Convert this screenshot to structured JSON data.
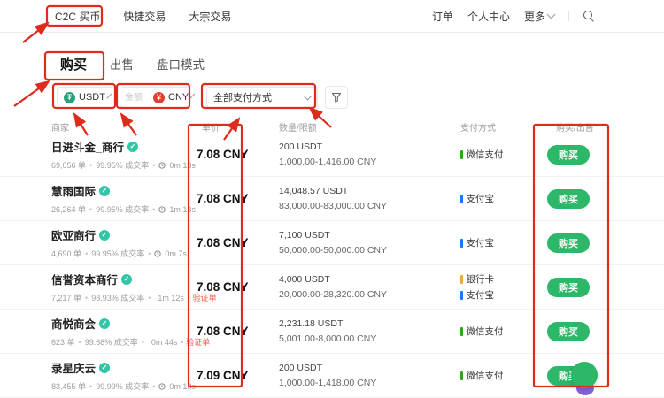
{
  "colors": {
    "accent_green": "#2db768",
    "badge_teal": "#33c6a6",
    "annotation_red": "#dd2b1c",
    "usdt_icon": "#26a17b",
    "cny_icon": "#e0402f",
    "tag_red": "#e8604c"
  },
  "icons": {
    "verified_badge": "✓",
    "usdt_symbol": "₮",
    "cny_symbol": "¥"
  },
  "nav": {
    "items": [
      "C2C 买币",
      "快捷交易",
      "大宗交易"
    ],
    "right": [
      "订单",
      "个人中心",
      "更多"
    ]
  },
  "tabs": [
    "购买",
    "出售",
    "盘口模式"
  ],
  "filters": {
    "crypto_label": "USDT",
    "amount_placeholder": "金额",
    "fiat_label": "CNY",
    "payment_label": "全部支付方式"
  },
  "table": {
    "headers": [
      "商家",
      "单价",
      "数量/限额",
      "支付方式",
      "购买/出售"
    ],
    "separator": "•",
    "rows": [
      {
        "merchant": "日进斗金_商行",
        "orders": "69,056 单",
        "rate": "99.95% 成交率",
        "time": "0m 13s",
        "tag": "",
        "price": "7.08 CNY",
        "amount": "200 USDT",
        "limit": "1,000.00-1,416.00 CNY",
        "payments": [
          {
            "name": "微信支付",
            "color": "#2aa81a"
          }
        ],
        "action": "购买"
      },
      {
        "merchant": "慧雨国际",
        "orders": "26,264 单",
        "rate": "99.95% 成交率",
        "time": "1m 13s",
        "tag": "",
        "price": "7.08 CNY",
        "amount": "14,048.57 USDT",
        "limit": "83,000.00-83,000.00 CNY",
        "payments": [
          {
            "name": "支付宝",
            "color": "#1677ff"
          }
        ],
        "action": "购买"
      },
      {
        "merchant": "欧亚商行",
        "orders": "4,690 单",
        "rate": "99.95% 成交率",
        "time": "0m 7s",
        "tag": "",
        "price": "7.08 CNY",
        "amount": "7,100 USDT",
        "limit": "50,000.00-50,000.00 CNY",
        "payments": [
          {
            "name": "支付宝",
            "color": "#1677ff"
          }
        ],
        "action": "购买"
      },
      {
        "merchant": "信誉资本商行",
        "orders": "7,217 单",
        "rate": "98.93% 成交率",
        "time": "1m 12s",
        "tag": "验证单",
        "price": "7.08 CNY",
        "amount": "4,000 USDT",
        "limit": "20,000.00-28,320.00 CNY",
        "payments": [
          {
            "name": "银行卡",
            "color": "#f3a736"
          },
          {
            "name": "支付宝",
            "color": "#1677ff"
          }
        ],
        "action": "购买"
      },
      {
        "merchant": "商悦商会",
        "orders": "623 单",
        "rate": "99.68% 成交率",
        "time": "0m 44s",
        "tag": "验证单",
        "price": "7.08 CNY",
        "amount": "2,231.18 USDT",
        "limit": "5,001.00-8,000.00 CNY",
        "payments": [
          {
            "name": "微信支付",
            "color": "#2aa81a"
          }
        ],
        "action": "购买"
      },
      {
        "merchant": "录星庆云",
        "orders": "83,455 单",
        "rate": "99.99% 成交率",
        "time": "0m 18s",
        "tag": "",
        "price": "7.09 CNY",
        "amount": "200 USDT",
        "limit": "1,000.00-1,418.00 CNY",
        "payments": [
          {
            "name": "微信支付",
            "color": "#2aa81a"
          }
        ],
        "action": "购买"
      }
    ]
  }
}
